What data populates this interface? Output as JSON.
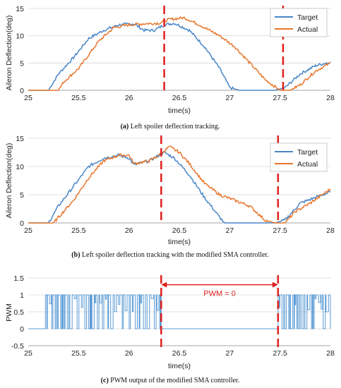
{
  "colors": {
    "target": "#4a86c8",
    "actual": "#e8772e",
    "pwm": "#5b9bd5",
    "marker": "#e0201e",
    "grid": "#d9d9d9",
    "axis": "#888888"
  },
  "chart_data": [
    {
      "type": "line",
      "caption_label": "(a)",
      "caption_text": " Left spoiler deflection tracking.",
      "xlabel": "time(s)",
      "ylabel": "Aileron Deflection(deg)",
      "xlim": [
        25,
        28
      ],
      "ylim": [
        0,
        15
      ],
      "xticks": [
        "25",
        "25.5",
        "26",
        "26.5",
        "27",
        "27.5",
        "28"
      ],
      "yticks": [
        "0",
        "5",
        "10",
        "15"
      ],
      "grid": true,
      "legend": "top-right",
      "markers_x": [
        26.35,
        27.53
      ],
      "series": [
        {
          "name": "Target",
          "color_key": "target",
          "points": [
            [
              25,
              0
            ],
            [
              25.2,
              0
            ],
            [
              25.3,
              3
            ],
            [
              25.45,
              6
            ],
            [
              25.6,
              9.5
            ],
            [
              25.75,
              11
            ],
            [
              25.9,
              12
            ],
            [
              26.05,
              12.2
            ],
            [
              26.15,
              11
            ],
            [
              26.25,
              11
            ],
            [
              26.35,
              12
            ],
            [
              26.45,
              12.3
            ],
            [
              26.6,
              11
            ],
            [
              26.75,
              8
            ],
            [
              26.9,
              4
            ],
            [
              27.0,
              0.5
            ],
            [
              27.1,
              0
            ],
            [
              27.45,
              0
            ],
            [
              27.55,
              0.5
            ],
            [
              27.7,
              3
            ],
            [
              27.85,
              4.5
            ],
            [
              28,
              5.2
            ]
          ]
        },
        {
          "name": "Actual",
          "color_key": "actual",
          "points": [
            [
              25,
              0
            ],
            [
              25.3,
              0
            ],
            [
              25.35,
              1.5
            ],
            [
              25.5,
              4
            ],
            [
              25.7,
              9
            ],
            [
              25.85,
              11.5
            ],
            [
              26.0,
              12
            ],
            [
              26.15,
              12.2
            ],
            [
              26.3,
              12.3
            ],
            [
              26.4,
              13
            ],
            [
              26.55,
              13.3
            ],
            [
              26.7,
              12
            ],
            [
              26.9,
              10
            ],
            [
              27.05,
              8
            ],
            [
              27.2,
              5
            ],
            [
              27.35,
              2
            ],
            [
              27.5,
              0
            ],
            [
              27.6,
              0
            ],
            [
              27.7,
              1
            ],
            [
              27.85,
              3.5
            ],
            [
              28,
              5
            ]
          ]
        }
      ]
    },
    {
      "type": "line",
      "caption_label": "(b)",
      "caption_text": " Left spoiler deflection tracking with the modified SMA controller.",
      "xlabel": "time(s)",
      "ylabel": "Aileron Deflection(deg)",
      "xlim": [
        25,
        28
      ],
      "ylim": [
        0,
        15
      ],
      "xticks": [
        "25",
        "25.5",
        "26",
        "26.5",
        "27",
        "27.5",
        "28"
      ],
      "yticks": [
        "0",
        "5",
        "10",
        "15"
      ],
      "grid": true,
      "legend": "top-right",
      "markers_x": [
        26.32,
        27.48
      ],
      "series": [
        {
          "name": "Target",
          "color_key": "target",
          "points": [
            [
              25,
              0
            ],
            [
              25.2,
              0
            ],
            [
              25.3,
              3
            ],
            [
              25.45,
              6.5
            ],
            [
              25.6,
              10
            ],
            [
              25.75,
              11.5
            ],
            [
              25.9,
              12
            ],
            [
              26.0,
              11.5
            ],
            [
              26.05,
              10.3
            ],
            [
              26.2,
              11
            ],
            [
              26.35,
              12.5
            ],
            [
              26.45,
              11.5
            ],
            [
              26.6,
              8.5
            ],
            [
              26.75,
              4.5
            ],
            [
              26.9,
              1
            ],
            [
              26.95,
              0
            ],
            [
              27.45,
              0
            ],
            [
              27.55,
              0.5
            ],
            [
              27.7,
              3.5
            ],
            [
              27.85,
              4.5
            ],
            [
              28,
              5.5
            ]
          ]
        },
        {
          "name": "Actual",
          "color_key": "actual",
          "points": [
            [
              25,
              0
            ],
            [
              25.25,
              0
            ],
            [
              25.3,
              1
            ],
            [
              25.45,
              4
            ],
            [
              25.6,
              8
            ],
            [
              25.75,
              11
            ],
            [
              25.9,
              12
            ],
            [
              26.0,
              12
            ],
            [
              26.05,
              10.5
            ],
            [
              26.2,
              11
            ],
            [
              26.3,
              12
            ],
            [
              26.4,
              13.5
            ],
            [
              26.5,
              12.5
            ],
            [
              26.6,
              10.5
            ],
            [
              26.75,
              7
            ],
            [
              26.9,
              5
            ],
            [
              27.05,
              4
            ],
            [
              27.2,
              3
            ],
            [
              27.35,
              0.5
            ],
            [
              27.45,
              0
            ],
            [
              27.55,
              0
            ],
            [
              27.65,
              2
            ],
            [
              27.8,
              3.5
            ],
            [
              28,
              6
            ]
          ]
        }
      ]
    },
    {
      "type": "line",
      "caption_label": "(c)",
      "caption_text": " PWM output of the modified SMA controller.",
      "xlabel": "time(s)",
      "ylabel": "PWM",
      "xlim": [
        25,
        28
      ],
      "ylim": [
        -0.5,
        1.5
      ],
      "xticks": [
        "25",
        "25.5",
        "26",
        "26.5",
        "27",
        "27.5",
        "28"
      ],
      "yticks": [
        "-0.5",
        "0",
        "0.5",
        "1",
        "1.5"
      ],
      "grid": true,
      "legend": "none",
      "markers_x": [
        26.32,
        27.48
      ],
      "annotation": {
        "text": "PWM = 0",
        "from_x": 26.32,
        "to_x": 27.48,
        "y": 1.3
      },
      "series": [
        {
          "name": "",
          "color_key": "pwm",
          "pwm_active": [
            [
              25.17,
              26.32
            ],
            [
              27.48,
              28
            ]
          ]
        }
      ]
    }
  ]
}
